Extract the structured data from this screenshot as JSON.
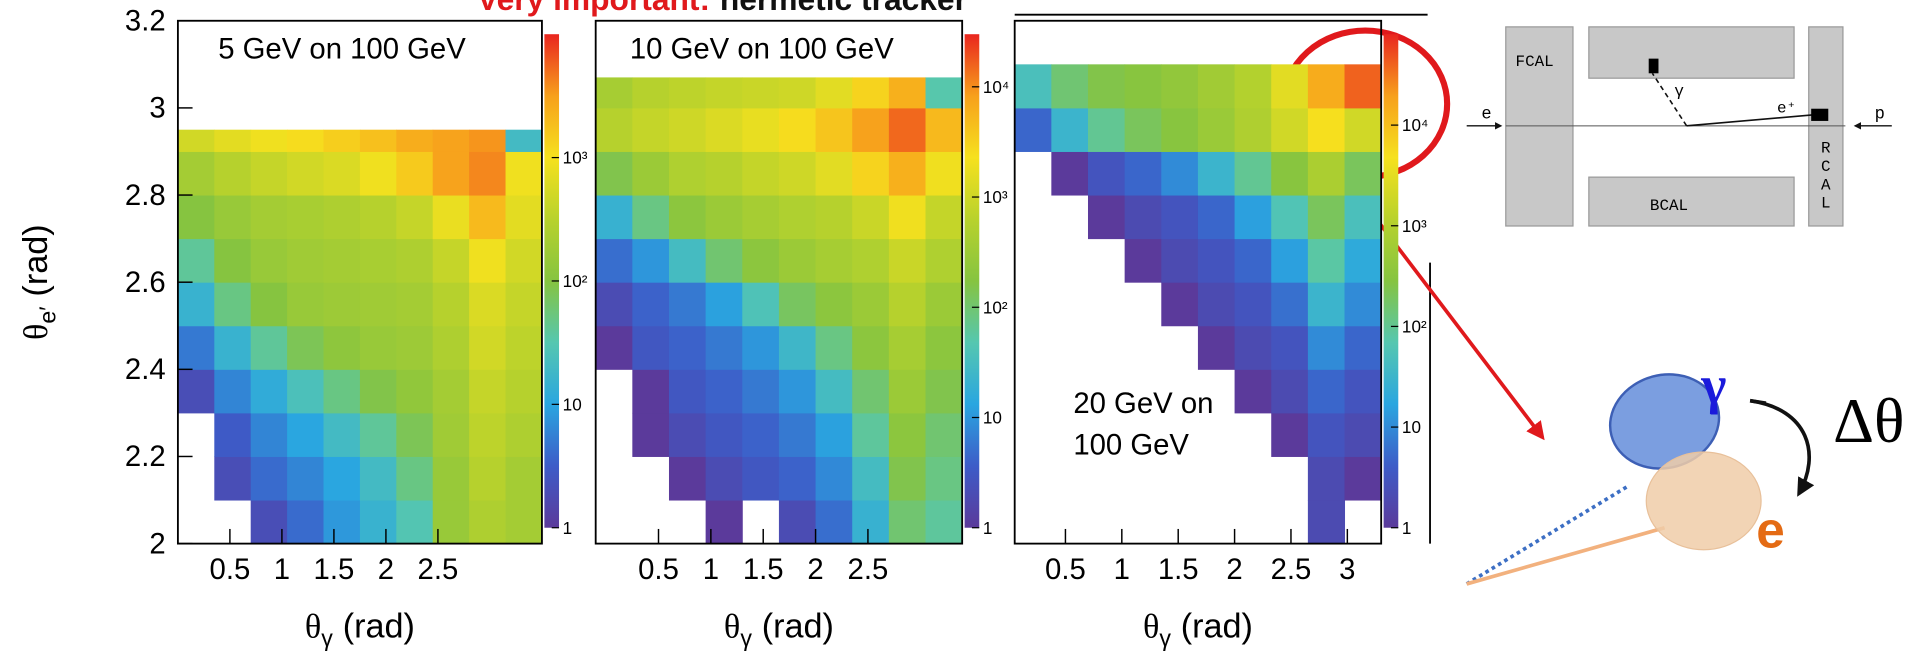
{
  "header": {
    "title_red": "Very important:",
    "title_black": "hermetic tracker"
  },
  "chart_data": [
    {
      "type": "heatmap",
      "title": [
        "5 GeV on 100 GeV"
      ],
      "xlim": [
        0,
        3.5
      ],
      "xticks": [
        0.5,
        1,
        1.5,
        2,
        2.5
      ],
      "ylim": [
        2,
        3.2
      ],
      "yticks": [
        2,
        2.2,
        2.4,
        2.6,
        2.8,
        3,
        3.2
      ],
      "x_label": {
        "symbol": "θ",
        "sub": "γ",
        "unit": "(rad)"
      },
      "y_label": {
        "symbol": "θ",
        "sub": "e′",
        "unit": "(rad)"
      },
      "zlim": [
        1,
        10000
      ],
      "log_z": true,
      "zticks": [
        1,
        10,
        {
          "value": 100,
          "label": "10²"
        },
        {
          "value": 1000,
          "label": "10³"
        }
      ],
      "xbins": [
        0,
        0.35,
        0.7,
        1.05,
        1.4,
        1.75,
        2.1,
        2.45,
        2.8,
        3.15,
        3.5
      ],
      "ybins": [
        2.0,
        2.1,
        2.2,
        2.3,
        2.4,
        2.5,
        2.6,
        2.7,
        2.8,
        2.9,
        2.95
      ],
      "z": [
        [
          null,
          null,
          2,
          4,
          8,
          15,
          30,
          150,
          250,
          200
        ],
        [
          null,
          2,
          4,
          6,
          10,
          20,
          50,
          150,
          300,
          200
        ],
        [
          null,
          3,
          6,
          10,
          20,
          40,
          80,
          180,
          350,
          250
        ],
        [
          2,
          6,
          12,
          25,
          50,
          90,
          130,
          200,
          400,
          300
        ],
        [
          5,
          15,
          40,
          80,
          120,
          150,
          170,
          250,
          500,
          350
        ],
        [
          15,
          50,
          100,
          150,
          170,
          180,
          200,
          300,
          600,
          400
        ],
        [
          40,
          100,
          150,
          180,
          200,
          220,
          250,
          400,
          900,
          500
        ],
        [
          100,
          150,
          200,
          220,
          250,
          300,
          400,
          800,
          2000,
          700
        ],
        [
          200,
          300,
          400,
          500,
          600,
          900,
          1500,
          3000,
          4000,
          900
        ],
        [
          500,
          700,
          900,
          1100,
          1400,
          1800,
          2500,
          3000,
          3500,
          20
        ]
      ]
    },
    {
      "type": "heatmap",
      "title": [
        "10 GeV on 100 GeV"
      ],
      "xlim": [
        -0.1,
        3.4
      ],
      "xticks": [
        0.5,
        1,
        1.5,
        2,
        2.5
      ],
      "ylim": [
        2,
        3.2
      ],
      "x_label": {
        "symbol": "θ",
        "sub": "γ",
        "unit": "(rad)"
      },
      "zlim": [
        1,
        30000
      ],
      "log_z": true,
      "zticks": [
        1,
        10,
        {
          "value": 100,
          "label": "10²"
        },
        {
          "value": 1000,
          "label": "10³"
        },
        {
          "value": 10000,
          "label": "10⁴"
        }
      ],
      "xbins": [
        -0.1,
        0.25,
        0.6,
        0.95,
        1.3,
        1.65,
        2.0,
        2.35,
        2.7,
        3.05,
        3.4
      ],
      "ybins": [
        2.0,
        2.1,
        2.2,
        2.3,
        2.4,
        2.5,
        2.6,
        2.7,
        2.8,
        2.9,
        3.0,
        3.07
      ],
      "z": [
        [
          null,
          null,
          null,
          1,
          null,
          2,
          5,
          20,
          100,
          60
        ],
        [
          null,
          null,
          1,
          2,
          3,
          4,
          8,
          30,
          150,
          80
        ],
        [
          null,
          1,
          2,
          3,
          4,
          6,
          12,
          60,
          200,
          100
        ],
        [
          null,
          1,
          3,
          4,
          6,
          10,
          30,
          100,
          300,
          150
        ],
        [
          1,
          3,
          4,
          6,
          10,
          25,
          80,
          200,
          400,
          200
        ],
        [
          2,
          4,
          6,
          12,
          40,
          120,
          200,
          300,
          600,
          300
        ],
        [
          5,
          10,
          30,
          100,
          200,
          300,
          400,
          500,
          900,
          500
        ],
        [
          20,
          80,
          200,
          300,
          400,
          500,
          600,
          900,
          2000,
          800
        ],
        [
          150,
          300,
          500,
          600,
          800,
          1000,
          1500,
          3000,
          6000,
          2000
        ],
        [
          600,
          800,
          1000,
          1300,
          1700,
          2500,
          4000,
          8000,
          15000,
          5000
        ],
        [
          400,
          600,
          700,
          800,
          900,
          1000,
          1500,
          3000,
          6000,
          50
        ]
      ]
    },
    {
      "type": "heatmap",
      "title": [
        "20 GeV on",
        "100 GeV"
      ],
      "xlim": [
        0.05,
        3.3
      ],
      "xticks": [
        0.5,
        1,
        1.5,
        2,
        2.5,
        3
      ],
      "ylim": [
        2,
        3.2
      ],
      "x_label": {
        "symbol": "θ",
        "sub": "γ",
        "unit": "(rad)"
      },
      "zlim": [
        1,
        80000
      ],
      "log_z": true,
      "zticks": [
        1,
        10,
        {
          "value": 100,
          "label": "10²"
        },
        {
          "value": 1000,
          "label": "10³"
        },
        {
          "value": 10000,
          "label": "10⁴"
        }
      ],
      "xbins": [
        0.05,
        0.375,
        0.7,
        1.025,
        1.35,
        1.675,
        2.0,
        2.325,
        2.65,
        2.975,
        3.3
      ],
      "ybins": [
        2.0,
        2.1,
        2.2,
        2.3,
        2.4,
        2.5,
        2.6,
        2.7,
        2.8,
        2.9,
        3.0,
        3.1
      ],
      "z": [
        [
          null,
          null,
          null,
          null,
          null,
          null,
          null,
          null,
          2,
          null
        ],
        [
          null,
          null,
          null,
          null,
          null,
          null,
          null,
          null,
          2,
          1
        ],
        [
          null,
          null,
          null,
          null,
          null,
          null,
          null,
          1,
          3,
          2
        ],
        [
          null,
          null,
          null,
          null,
          null,
          null,
          1,
          2,
          5,
          3
        ],
        [
          null,
          null,
          null,
          null,
          null,
          1,
          2,
          3,
          10,
          5
        ],
        [
          null,
          null,
          null,
          null,
          1,
          2,
          3,
          6,
          30,
          10
        ],
        [
          null,
          null,
          null,
          1,
          2,
          3,
          5,
          15,
          80,
          20
        ],
        [
          null,
          null,
          1,
          2,
          3,
          5,
          15,
          60,
          200,
          50
        ],
        [
          null,
          1,
          3,
          5,
          10,
          30,
          100,
          300,
          800,
          200
        ],
        [
          5,
          30,
          100,
          200,
          300,
          500,
          900,
          2000,
          5000,
          2000
        ],
        [
          50,
          150,
          250,
          300,
          400,
          600,
          1000,
          3000,
          15000,
          40000
        ]
      ]
    }
  ],
  "palette": [
    "#5b3a9b",
    "#3d5cc8",
    "#2aa6e0",
    "#55c7b0",
    "#86c440",
    "#b8d22c",
    "#f6e11e",
    "#f7a01c",
    "#e9261f"
  ],
  "diagram": {
    "fcal": "FCAL",
    "bcal": "BCAL",
    "rcal": [
      "R",
      "C",
      "A",
      "L"
    ],
    "electron": "e",
    "proton": "p",
    "photon": "γ",
    "positron": "e⁺"
  },
  "schematic": {
    "photon": "γ",
    "electron": "e",
    "delta": "Δθ"
  }
}
